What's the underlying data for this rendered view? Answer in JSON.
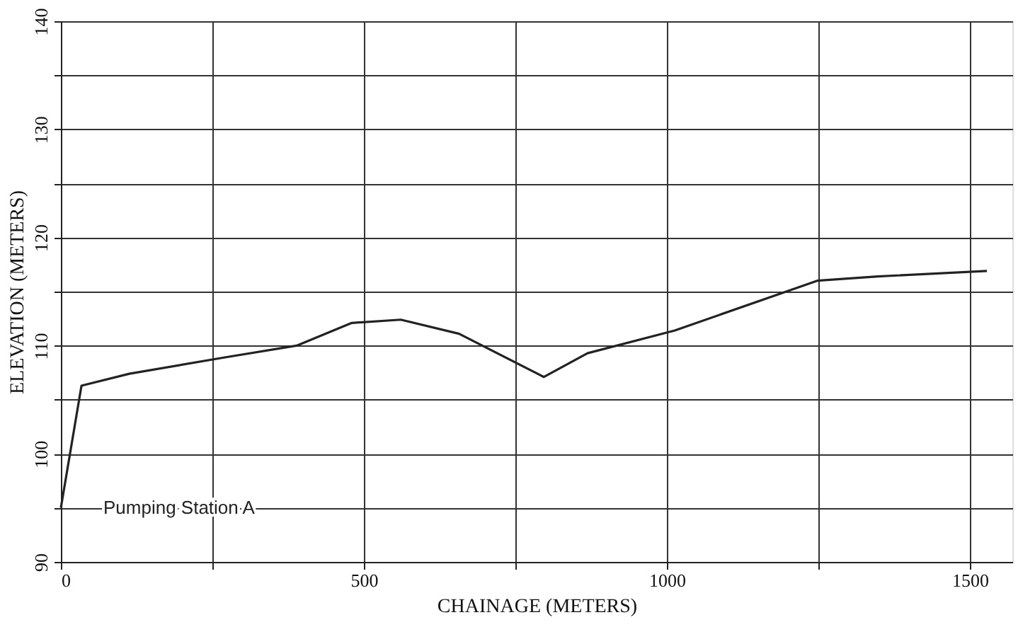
{
  "chart_data": {
    "type": "line",
    "xlabel": "CHAINAGE (METERS)",
    "ylabel": "ELEVATION (METERS)",
    "x": [
      0,
      34,
      113,
      269,
      389,
      480,
      561,
      657,
      797,
      869,
      1013,
      1248,
      1348,
      1528
    ],
    "series": [
      {
        "color": "#222222",
        "values": [
          95,
          106.3,
          107.4,
          108.9,
          110,
          112.1,
          112.4,
          111.1,
          107.1,
          109.3,
          111.4,
          116,
          116.4,
          116.9
        ]
      }
    ],
    "xlim": [
      0,
      1570
    ],
    "ylim": [
      90,
      140
    ],
    "xticks": [
      0,
      {
        "value": 250,
        "label": null
      },
      500,
      {
        "value": 750,
        "label": null
      },
      1000,
      {
        "value": 1250,
        "label": null
      },
      1500
    ],
    "yticks": [
      90,
      {
        "value": 95,
        "label": null
      },
      100,
      {
        "value": 105,
        "label": null
      },
      110,
      {
        "value": 115,
        "label": null
      },
      120,
      {
        "value": 125,
        "label": null
      },
      130,
      {
        "value": 135,
        "label": null
      },
      140
    ],
    "grid": true,
    "marker": "none",
    "line_style": "solid",
    "annotations": [
      {
        "text": "Pumping Station A",
        "x": 0,
        "y": 95
      }
    ]
  }
}
